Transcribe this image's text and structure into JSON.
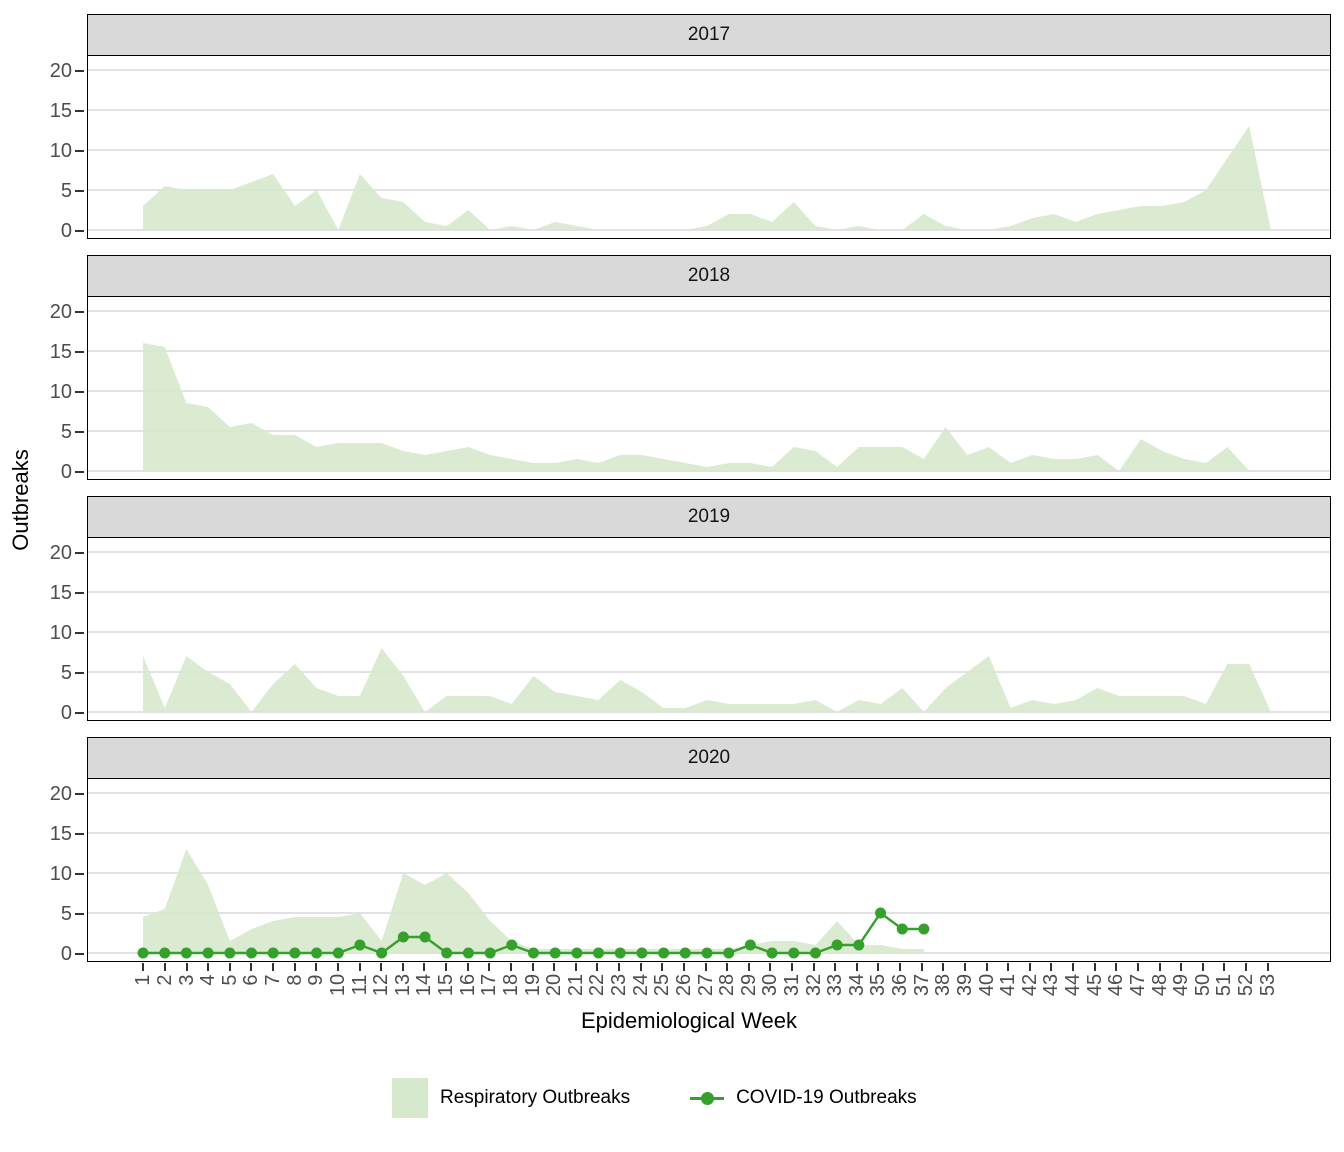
{
  "figure": {
    "y_axis_title": "Outbreaks",
    "x_axis_title": "Epidemiological Week",
    "y_ticks": [
      0,
      5,
      10,
      15,
      20
    ],
    "legend": [
      {
        "label": "Respiratory Outbreaks",
        "type": "area-swatch"
      },
      {
        "label": "COVID-19 Outbreaks",
        "type": "line-with-point"
      }
    ],
    "colors": {
      "respiratory_fill": "#d7e9cc",
      "covid_green": "#35a12c",
      "gridline": "#d9d9d9",
      "strip_bg": "#d9d9d9",
      "panel_border": "#000000",
      "tick_text": "#4d4d4d"
    }
  },
  "chart_data": {
    "type": "area",
    "xlabel": "Epidemiological Week",
    "ylabel": "Outbreaks",
    "ylim": [
      0,
      20
    ],
    "grid": "horizontal-only",
    "legend_position": "bottom",
    "weeks": [
      1,
      2,
      3,
      4,
      5,
      6,
      7,
      8,
      9,
      10,
      11,
      12,
      13,
      14,
      15,
      16,
      17,
      18,
      19,
      20,
      21,
      22,
      23,
      24,
      25,
      26,
      27,
      28,
      29,
      30,
      31,
      32,
      33,
      34,
      35,
      36,
      37,
      38,
      39,
      40,
      41,
      42,
      43,
      44,
      45,
      46,
      47,
      48,
      49,
      50,
      51,
      52,
      53
    ],
    "facets": [
      {
        "year": "2017",
        "respiratory": [
          3,
          5.5,
          5,
          5,
          5,
          6,
          7,
          3,
          5,
          0,
          7,
          4,
          3.5,
          1,
          0.5,
          2.5,
          0,
          0.5,
          0,
          1,
          0.5,
          0,
          0,
          0,
          0,
          0,
          0.5,
          2,
          2,
          1,
          3.5,
          0.5,
          0,
          0.5,
          0,
          0,
          2,
          0.5,
          0,
          0,
          0.5,
          1.5,
          2,
          1,
          2,
          2.5,
          3,
          3,
          3.5,
          5,
          9,
          13,
          0
        ],
        "covid": null
      },
      {
        "year": "2018",
        "respiratory": [
          16,
          15.5,
          8.5,
          8,
          5.5,
          6,
          4.5,
          4.5,
          3,
          3.5,
          3.5,
          3.5,
          2.5,
          2,
          2.5,
          3,
          2,
          1.5,
          1,
          1,
          1.5,
          1,
          2,
          2,
          1.5,
          1,
          0.5,
          1,
          1,
          0.5,
          3,
          2.5,
          0.5,
          3,
          3,
          3,
          1.5,
          5.5,
          2,
          3,
          1,
          2,
          1.5,
          1.5,
          2,
          0,
          4,
          2.5,
          1.5,
          1,
          3,
          0,
          0
        ],
        "covid": null
      },
      {
        "year": "2019",
        "respiratory": [
          7,
          0.5,
          7,
          5,
          3.5,
          0,
          3.5,
          6,
          3,
          2,
          2,
          8,
          4.5,
          0,
          2,
          2,
          2,
          1,
          4.5,
          2.5,
          2,
          1.5,
          4,
          2.5,
          0.5,
          0.5,
          1.5,
          1,
          1,
          1,
          1,
          1.5,
          0,
          1.5,
          1,
          3,
          0,
          3,
          5,
          7,
          0.5,
          1.5,
          1,
          1.5,
          3,
          2,
          2,
          2,
          2,
          1,
          6,
          6,
          0
        ],
        "covid": null
      },
      {
        "year": "2020",
        "respiratory": [
          4.5,
          5.5,
          13,
          8.5,
          1.5,
          3,
          4,
          4.5,
          4.5,
          4.5,
          5,
          1.5,
          10,
          8.5,
          10,
          7.5,
          4,
          1.5,
          0.5,
          0.5,
          0.5,
          0.5,
          0.5,
          0.5,
          0.5,
          0.5,
          0.5,
          0.5,
          1,
          1.5,
          1.5,
          1,
          4,
          1,
          1,
          0.5,
          0.5,
          null,
          null,
          null,
          null,
          null,
          null,
          null,
          null,
          null,
          null,
          null,
          null,
          null,
          null,
          null,
          null
        ],
        "covid": [
          0,
          0,
          0,
          0,
          0,
          0,
          0,
          0,
          0,
          0,
          1,
          0,
          2,
          2,
          0,
          0,
          0,
          1,
          0,
          0,
          0,
          0,
          0,
          0,
          0,
          0,
          0,
          0,
          1,
          0,
          0,
          0,
          1,
          1,
          5,
          3,
          3,
          null,
          null,
          null,
          null,
          null,
          null,
          null,
          null,
          null,
          null,
          null,
          null,
          null,
          null,
          null,
          null
        ]
      }
    ]
  }
}
